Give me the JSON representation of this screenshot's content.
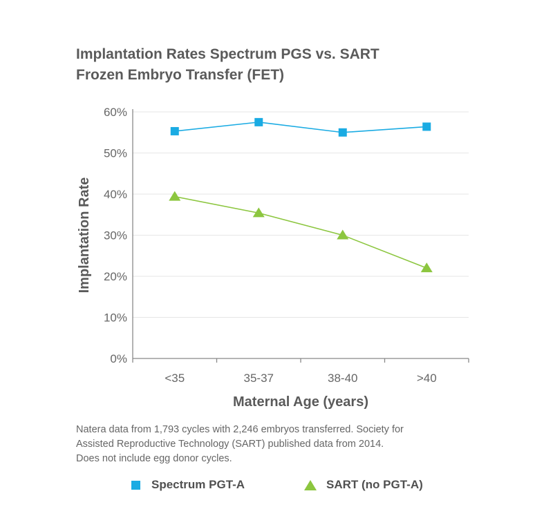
{
  "title_lines": [
    "Implantation Rates Spectrum PGS vs. SART",
    "Frozen Embryo Transfer (FET)"
  ],
  "chart_data": {
    "type": "line",
    "categories": [
      "<35",
      "35-37",
      "38-40",
      ">40"
    ],
    "series": [
      {
        "name": "Spectrum PGT-A",
        "marker": "square",
        "color": "#1aabe3",
        "values": [
          55.3,
          57.5,
          55.0,
          56.4
        ]
      },
      {
        "name": "SART (no PGT-A)",
        "marker": "triangle",
        "color": "#8cc63f",
        "values": [
          39.4,
          35.4,
          30.0,
          22.0
        ]
      }
    ],
    "xlabel": "Maternal Age (years)",
    "ylabel": "Implantation Rate",
    "ylim": [
      0,
      60
    ],
    "yticks": [
      0,
      10,
      20,
      30,
      40,
      50,
      60
    ],
    "ytick_labels": [
      "0%",
      "10%",
      "20%",
      "30%",
      "40%",
      "50%",
      "60%"
    ],
    "grid": true,
    "legend_position": "bottom"
  },
  "footnote_lines": [
    "Natera data from 1,793 cycles with 2,246 embryos transferred. Society for",
    "Assisted Reproductive Technology (SART) published data from 2014.",
    "Does not include egg donor cycles."
  ],
  "legend": {
    "spectrum_label": "Spectrum PGT-A",
    "sart_label": "SART (no PGT-A)"
  },
  "colors": {
    "spectrum": "#1aabe3",
    "sart": "#8cc63f",
    "grid": "#e6e6e6",
    "axis": "#888888",
    "text": "#5a5a5a"
  }
}
